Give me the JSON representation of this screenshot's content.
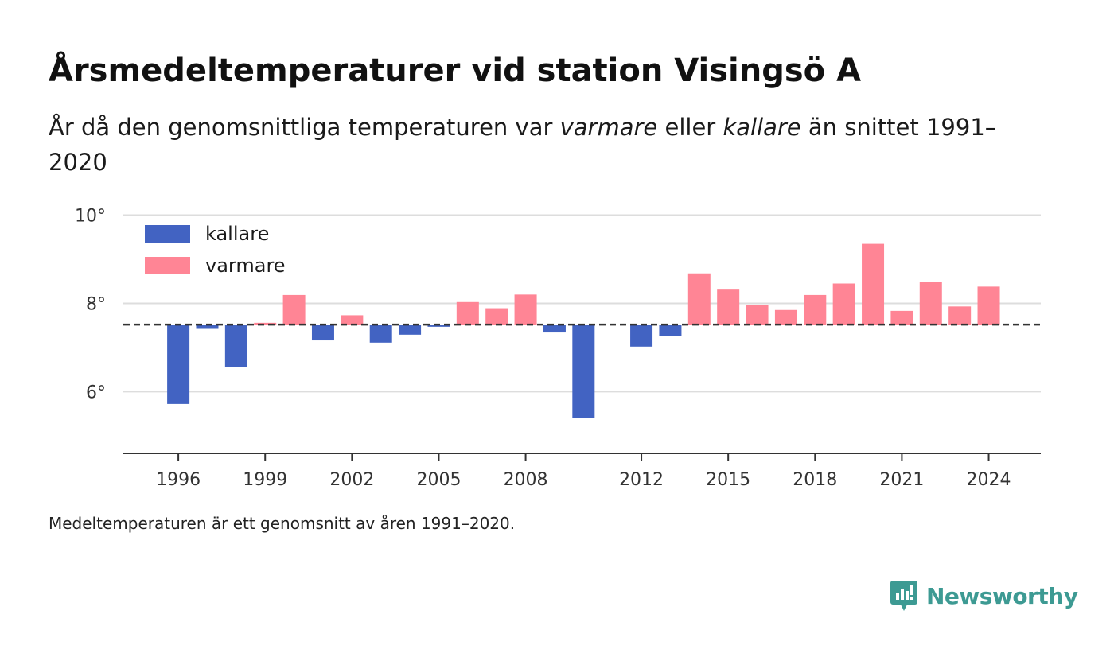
{
  "title": "Årsmedeltemperaturer vid station Visingsö A",
  "subtitle": {
    "part1": "År då den genomsnittliga temperaturen var ",
    "warm_word": "varmare",
    "part2": " eller ",
    "cold_word": "kallare",
    "part3": " än snittet 1991–2020"
  },
  "footnote": "Medeltemperaturen är ett genomsnitt av åren 1991–2020.",
  "brand": "Newsworthy",
  "colors": {
    "kallare": "#4263c2",
    "varmare": "#ff8595",
    "grid": "#dddddd",
    "axis": "#333333",
    "reference_line": "#333333",
    "brand": "#3d9a93"
  },
  "chart_data": {
    "type": "bar",
    "baseline": 7.52,
    "ylim": [
      4.6,
      10.1
    ],
    "y_ticks": [
      6,
      8,
      10
    ],
    "y_tick_labels": [
      "6°",
      "8°",
      "10°"
    ],
    "x_tick_labels": [
      "1996",
      "1999",
      "2002",
      "2005",
      "2008",
      "2012",
      "2015",
      "2018",
      "2021",
      "2024"
    ],
    "legend": [
      {
        "key": "kallare",
        "label": "kallare"
      },
      {
        "key": "varmare",
        "label": "varmare"
      }
    ],
    "legend_position": "top-left",
    "grid": true,
    "x": [
      1996,
      1997,
      1998,
      1999,
      2000,
      2001,
      2002,
      2003,
      2004,
      2005,
      2006,
      2007,
      2008,
      2009,
      2010,
      2012,
      2013,
      2014,
      2015,
      2016,
      2017,
      2018,
      2019,
      2020,
      2021,
      2022,
      2023,
      2024
    ],
    "values": [
      5.72,
      7.44,
      6.56,
      7.56,
      8.19,
      7.16,
      7.73,
      7.11,
      7.29,
      7.47,
      8.03,
      7.89,
      8.2,
      7.34,
      5.41,
      7.02,
      7.26,
      8.68,
      8.33,
      7.97,
      7.85,
      8.19,
      8.45,
      9.35,
      7.83,
      8.49,
      7.93,
      8.38
    ]
  }
}
